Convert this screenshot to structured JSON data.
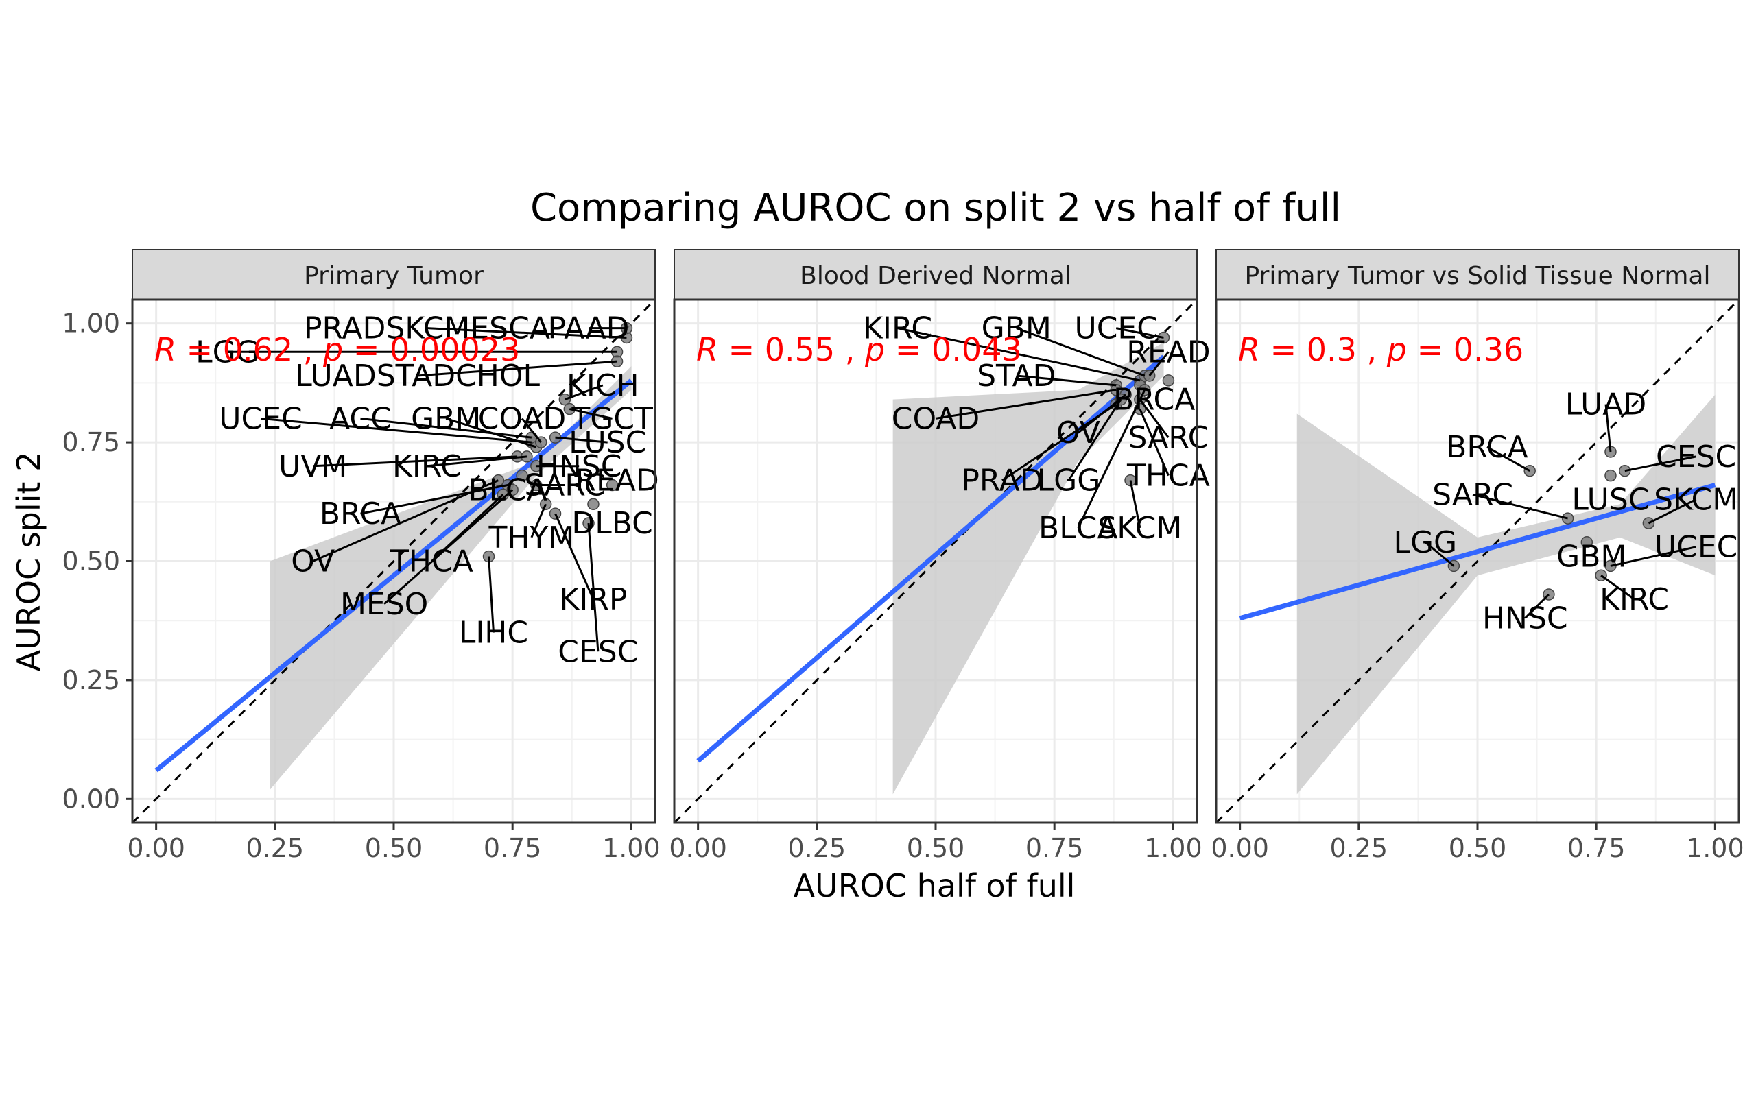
{
  "figure": {
    "title": "Comparing AUROC on split 2 vs half of full",
    "xlabel": "AUROC half of full",
    "ylabel": "AUROC split 2"
  },
  "colors": {
    "fit_line": "#3366ff",
    "annotation": "#ff0000",
    "point": "#808080",
    "ribbon": "#cccccc",
    "strip_bg": "#d9d9d9",
    "grid": "#ebebeb"
  },
  "chart_data": [
    {
      "type": "scatter",
      "panel": "Primary Tumor",
      "xlim": [
        -0.05,
        1.05
      ],
      "ylim": [
        -0.05,
        1.05
      ],
      "x_ticks": [
        "0.00",
        "0.25",
        "0.50",
        "0.75",
        "1.00"
      ],
      "y_ticks": [
        "0.00",
        "0.25",
        "0.50",
        "0.75",
        "1.00"
      ],
      "annotation": {
        "r_label": "R",
        "r_value": " = 0.62 , ",
        "p_label": "p",
        "p_value": " = 0.00023"
      },
      "fit": {
        "x0": 0.0,
        "y0": 0.06,
        "x1": 1.0,
        "y1": 0.88
      },
      "ribbon": [
        [
          0.24,
          0.5
        ],
        [
          0.8,
          0.71
        ],
        [
          1.0,
          0.91
        ],
        [
          1.0,
          0.86
        ],
        [
          0.8,
          0.68
        ],
        [
          0.24,
          0.02
        ]
      ],
      "points": [
        {
          "label": "PRADSKCMESCA",
          "x": 0.99,
          "y": 0.97
        },
        {
          "label": "PAAD",
          "x": 0.99,
          "y": 0.99
        },
        {
          "label": "LGG",
          "x": 0.97,
          "y": 0.94
        },
        {
          "label": "LUADSTADCHOL",
          "x": 0.97,
          "y": 0.92
        },
        {
          "label": "KICH",
          "x": 0.86,
          "y": 0.84
        },
        {
          "label": "UCEC",
          "x": 0.79,
          "y": 0.75
        },
        {
          "label": "ACC",
          "x": 0.79,
          "y": 0.76
        },
        {
          "label": "GBM",
          "x": 0.8,
          "y": 0.74
        },
        {
          "label": "COAD",
          "x": 0.81,
          "y": 0.75
        },
        {
          "label": "TGCT",
          "x": 0.87,
          "y": 0.82
        },
        {
          "label": "LUSC",
          "x": 0.84,
          "y": 0.76
        },
        {
          "label": "UVM",
          "x": 0.76,
          "y": 0.72
        },
        {
          "label": "KIRC",
          "x": 0.78,
          "y": 0.72
        },
        {
          "label": "HNSC",
          "x": 0.8,
          "y": 0.7
        },
        {
          "label": "BLCA",
          "x": 0.77,
          "y": 0.68
        },
        {
          "label": "SARC",
          "x": 0.8,
          "y": 0.66
        },
        {
          "label": "READ",
          "x": 0.96,
          "y": 0.66
        },
        {
          "label": "BRCA",
          "x": 0.74,
          "y": 0.66
        },
        {
          "label": "DLBC",
          "x": 0.92,
          "y": 0.62
        },
        {
          "label": "OV",
          "x": 0.72,
          "y": 0.67
        },
        {
          "label": "THCA",
          "x": 0.73,
          "y": 0.64
        },
        {
          "label": "THYM",
          "x": 0.82,
          "y": 0.62
        },
        {
          "label": "KIRP",
          "x": 0.84,
          "y": 0.6
        },
        {
          "label": "CESC",
          "x": 0.91,
          "y": 0.58
        },
        {
          "label": "MESO",
          "x": 0.75,
          "y": 0.65
        },
        {
          "label": "LIHC",
          "x": 0.7,
          "y": 0.51
        }
      ]
    },
    {
      "type": "scatter",
      "panel": "Blood Derived Normal",
      "xlim": [
        -0.05,
        1.05
      ],
      "ylim": [
        -0.05,
        1.05
      ],
      "x_ticks": [
        "0.00",
        "0.25",
        "0.50",
        "0.75",
        "1.00"
      ],
      "y_ticks": [],
      "annotation": {
        "r_label": "R",
        "r_value": " = 0.55 , ",
        "p_label": "p",
        "p_value": " = 0.043"
      },
      "fit": {
        "x0": 0.0,
        "y0": 0.08,
        "x1": 0.98,
        "y1": 0.93
      },
      "ribbon": [
        [
          0.41,
          0.84
        ],
        [
          0.8,
          0.86
        ],
        [
          0.98,
          0.96
        ],
        [
          0.98,
          0.89
        ],
        [
          0.8,
          0.71
        ],
        [
          0.41,
          0.01
        ]
      ],
      "points": [
        {
          "label": "KIRC",
          "x": 0.93,
          "y": 0.88
        },
        {
          "label": "GBM",
          "x": 0.94,
          "y": 0.89
        },
        {
          "label": "UCEC",
          "x": 0.98,
          "y": 0.97
        },
        {
          "label": "READ",
          "x": 0.95,
          "y": 0.89
        },
        {
          "label": "STAD",
          "x": 0.88,
          "y": 0.87
        },
        {
          "label": "COAD",
          "x": 0.88,
          "y": 0.86
        },
        {
          "label": "BRCA",
          "x": 0.93,
          "y": 0.87
        },
        {
          "label": "OV",
          "x": 0.9,
          "y": 0.85
        },
        {
          "label": "SARC",
          "x": 0.93,
          "y": 0.84
        },
        {
          "label": "THCA",
          "x": 0.93,
          "y": 0.82
        },
        {
          "label": "PRAD",
          "x": 0.88,
          "y": 0.83
        },
        {
          "label": "LGG",
          "x": 0.89,
          "y": 0.84
        },
        {
          "label": "BLCA",
          "x": 0.94,
          "y": 0.86
        },
        {
          "label": "SKCM",
          "x": 0.91,
          "y": 0.67
        },
        {
          "label": "",
          "x": 0.99,
          "y": 0.88
        }
      ]
    },
    {
      "type": "scatter",
      "panel": "Primary Tumor vs Solid Tissue Normal",
      "xlim": [
        -0.05,
        1.05
      ],
      "ylim": [
        -0.05,
        1.05
      ],
      "x_ticks": [
        "0.00",
        "0.25",
        "0.50",
        "0.75",
        "1.00"
      ],
      "y_ticks": [],
      "annotation": {
        "r_label": "R",
        "r_value": " = 0.3 , ",
        "p_label": "p",
        "p_value": " = 0.36"
      },
      "fit": {
        "x0": 0.0,
        "y0": 0.38,
        "x1": 1.0,
        "y1": 0.66
      },
      "ribbon": [
        [
          0.12,
          0.81
        ],
        [
          0.5,
          0.55
        ],
        [
          0.8,
          0.62
        ],
        [
          1.0,
          0.85
        ],
        [
          1.0,
          0.47
        ],
        [
          0.8,
          0.55
        ],
        [
          0.5,
          0.47
        ],
        [
          0.12,
          0.01
        ]
      ],
      "points": [
        {
          "label": "LUAD",
          "x": 0.78,
          "y": 0.73
        },
        {
          "label": "BRCA",
          "x": 0.61,
          "y": 0.69
        },
        {
          "label": "CESC",
          "x": 0.81,
          "y": 0.69
        },
        {
          "label": "SARC",
          "x": 0.69,
          "y": 0.59
        },
        {
          "label": "LUSC",
          "x": 0.78,
          "y": 0.68
        },
        {
          "label": "SKCM",
          "x": 0.86,
          "y": 0.58
        },
        {
          "label": "LGG",
          "x": 0.45,
          "y": 0.49
        },
        {
          "label": "GBM",
          "x": 0.73,
          "y": 0.54
        },
        {
          "label": "UCEC",
          "x": 0.78,
          "y": 0.49
        },
        {
          "label": "HNSC",
          "x": 0.65,
          "y": 0.43
        },
        {
          "label": "KIRC",
          "x": 0.76,
          "y": 0.47
        }
      ]
    }
  ],
  "label_layout": [
    [
      {
        "lx": 0.57,
        "ly": 0.99
      },
      {
        "lx": 0.91,
        "ly": 0.99
      },
      {
        "lx": 0.15,
        "ly": 0.94
      },
      {
        "lx": 0.55,
        "ly": 0.89
      },
      {
        "lx": 0.94,
        "ly": 0.87
      },
      {
        "lx": 0.22,
        "ly": 0.8
      },
      {
        "lx": 0.43,
        "ly": 0.8
      },
      {
        "lx": 0.61,
        "ly": 0.8
      },
      {
        "lx": 0.77,
        "ly": 0.8
      },
      {
        "lx": 0.96,
        "ly": 0.8
      },
      {
        "lx": 0.95,
        "ly": 0.75
      },
      {
        "lx": 0.33,
        "ly": 0.7
      },
      {
        "lx": 0.57,
        "ly": 0.7
      },
      {
        "lx": 0.89,
        "ly": 0.7
      },
      {
        "lx": 0.74,
        "ly": 0.65
      },
      {
        "lx": 0.86,
        "ly": 0.66
      },
      {
        "lx": 0.97,
        "ly": 0.67
      },
      {
        "lx": 0.43,
        "ly": 0.6
      },
      {
        "lx": 0.96,
        "ly": 0.58
      },
      {
        "lx": 0.33,
        "ly": 0.5
      },
      {
        "lx": 0.58,
        "ly": 0.5
      },
      {
        "lx": 0.79,
        "ly": 0.55
      },
      {
        "lx": 0.92,
        "ly": 0.42
      },
      {
        "lx": 0.93,
        "ly": 0.31
      },
      {
        "lx": 0.48,
        "ly": 0.41
      },
      {
        "lx": 0.71,
        "ly": 0.35
      }
    ],
    [
      {
        "lx": 0.42,
        "ly": 0.99
      },
      {
        "lx": 0.67,
        "ly": 0.99
      },
      {
        "lx": 0.88,
        "ly": 0.99
      },
      {
        "lx": 0.99,
        "ly": 0.94
      },
      {
        "lx": 0.67,
        "ly": 0.89
      },
      {
        "lx": 0.5,
        "ly": 0.8
      },
      {
        "lx": 0.96,
        "ly": 0.84
      },
      {
        "lx": 0.8,
        "ly": 0.77
      },
      {
        "lx": 0.99,
        "ly": 0.76
      },
      {
        "lx": 0.99,
        "ly": 0.68
      },
      {
        "lx": 0.64,
        "ly": 0.67
      },
      {
        "lx": 0.78,
        "ly": 0.67
      },
      {
        "lx": 0.8,
        "ly": 0.57
      },
      {
        "lx": 0.93,
        "ly": 0.57
      },
      null
    ],
    [
      {
        "lx": 0.77,
        "ly": 0.83
      },
      {
        "lx": 0.52,
        "ly": 0.74
      },
      {
        "lx": 0.96,
        "ly": 0.72
      },
      {
        "lx": 0.49,
        "ly": 0.64
      },
      {
        "lx": 0.78,
        "ly": 0.63
      },
      {
        "lx": 0.96,
        "ly": 0.63
      },
      {
        "lx": 0.39,
        "ly": 0.54
      },
      {
        "lx": 0.74,
        "ly": 0.51
      },
      {
        "lx": 0.96,
        "ly": 0.53
      },
      {
        "lx": 0.6,
        "ly": 0.38
      },
      {
        "lx": 0.83,
        "ly": 0.42
      }
    ]
  ]
}
